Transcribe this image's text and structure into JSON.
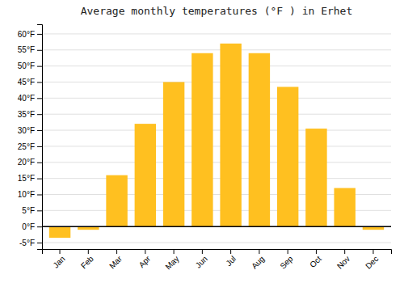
{
  "chart_data": {
    "type": "bar",
    "title": "Average monthly temperatures (°F ) in Erhet",
    "categories": [
      "Jan",
      "Feb",
      "Mar",
      "Apr",
      "May",
      "Jun",
      "Jul",
      "Aug",
      "Sep",
      "Oct",
      "Nov",
      "Dec"
    ],
    "values": [
      -3.5,
      -1.0,
      16.0,
      32.0,
      45.0,
      54.0,
      57.0,
      54.0,
      43.5,
      30.5,
      12.0,
      -1.0
    ],
    "color": "#FFC020",
    "ylim": [
      -7,
      63
    ],
    "yticks": [
      {
        "value": -5,
        "label": "-5°F"
      },
      {
        "value": 0,
        "label": "0°F"
      },
      {
        "value": 5,
        "label": "5°F"
      },
      {
        "value": 10,
        "label": "10°F"
      },
      {
        "value": 15,
        "label": "15°F"
      },
      {
        "value": 20,
        "label": "20°F"
      },
      {
        "value": 25,
        "label": "25°F"
      },
      {
        "value": 30,
        "label": "30°F"
      },
      {
        "value": 35,
        "label": "35°F"
      },
      {
        "value": 40,
        "label": "40°F"
      },
      {
        "value": 45,
        "label": "45°F"
      },
      {
        "value": 50,
        "label": "50°F"
      },
      {
        "value": 55,
        "label": "55°F"
      },
      {
        "value": 60,
        "label": "60°F"
      }
    ],
    "grid": true
  }
}
